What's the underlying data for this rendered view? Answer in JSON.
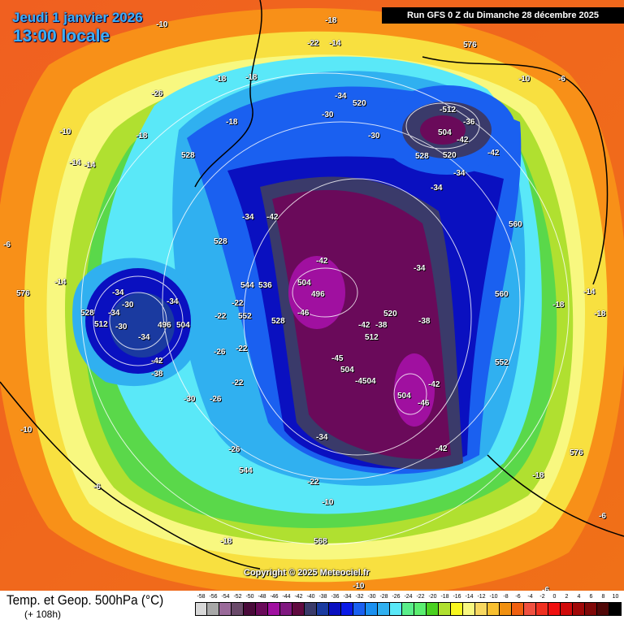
{
  "header": {
    "date": "Jeudi 1 janvier 2026",
    "time": "13:00 locale",
    "run": "Run GFS 0 Z du Dimanche 28 décembre 2025"
  },
  "copyright": "Copyright © 2025 Meteociel.fr",
  "legend": {
    "title": "Temp. et Geop. 500hPa (°C)",
    "lead": "(+ 108h)",
    "ticks": [
      "-58",
      "-56",
      "-54",
      "-52",
      "-50",
      "-48",
      "-46",
      "-44",
      "-42",
      "-40",
      "-38",
      "-36",
      "-34",
      "-32",
      "-30",
      "-28",
      "-26",
      "-24",
      "-22",
      "-20",
      "-18",
      "-16",
      "-14",
      "-12",
      "-10",
      "-8",
      "-6",
      "-4",
      "-2",
      "0",
      "2",
      "4",
      "6",
      "8",
      "10"
    ],
    "colors": [
      "#d8d8d8",
      "#a8a8a8",
      "#9a6a9a",
      "#6a4a6a",
      "#4a0a3a",
      "#6a0a5a",
      "#a010a0",
      "#801880",
      "#600a40",
      "#3a3a6a",
      "#1a3aa0",
      "#0a10c0",
      "#0a1ae8",
      "#1a60f0",
      "#1a90f0",
      "#30b0f0",
      "#5ae8f8",
      "#5aee8a",
      "#5aee70",
      "#4ad020",
      "#b0e030",
      "#f8f820",
      "#f8f880",
      "#f8d860",
      "#f8c030",
      "#f09010",
      "#f06010",
      "#f05040",
      "#f03020",
      "#f01010",
      "#d00a0a",
      "#a00808",
      "#800808",
      "#500808",
      "#000000"
    ]
  },
  "map_labels": [
    "-10",
    "-22",
    "-18",
    "-18",
    "-26",
    "-18",
    "-18",
    "-18",
    "-10",
    "-14",
    "-14",
    "-30",
    "-34",
    "520",
    "576",
    "-14",
    "-10",
    "-6",
    "-512",
    "504",
    "-36",
    "-42",
    "-42",
    "528",
    "520",
    "-34",
    "-30",
    "-34",
    "528",
    "-34",
    "-42",
    "560",
    "528",
    "-6",
    "-14",
    "576",
    "-34",
    "-30",
    "-34",
    "528",
    "-30",
    "512",
    "-34",
    "-34",
    "496",
    "504",
    "-42",
    "-38",
    "-22",
    "552",
    "544",
    "536",
    "-42",
    "504",
    "496",
    "-46",
    "528",
    "-42",
    "-38",
    "520",
    "512",
    "-38",
    "-34",
    "-22",
    "-26",
    "-22",
    "-22",
    "-45",
    "504",
    "-4504",
    "504",
    "-46",
    "-42",
    "560",
    "552",
    "-14",
    "-18",
    "-18",
    "-30",
    "-26",
    "-10",
    "-34",
    "-42",
    "-26",
    "544",
    "-22",
    "-18",
    "576",
    "-6",
    "-10",
    "-18",
    "568",
    "-10",
    "-6",
    "-6"
  ]
}
